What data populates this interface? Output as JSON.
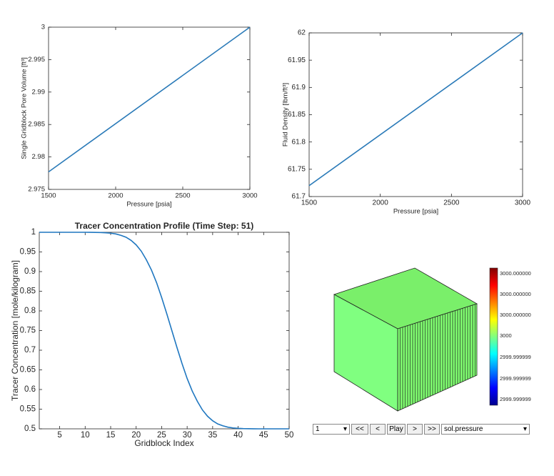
{
  "chart_data": [
    {
      "type": "line",
      "ylabel": "Single  Gridblock  Pore  Volume  [ft³]",
      "xlabel": "Pressure [psia]",
      "x": [
        1500,
        3000
      ],
      "values": [
        2.9777,
        3
      ],
      "color": "#2a7ab8",
      "xlim": [
        1500,
        3000
      ],
      "xticks": [
        1500,
        2000,
        2500,
        3000
      ],
      "ylim": [
        2.975,
        3
      ],
      "yticks": [
        2.975,
        2.98,
        2.985,
        2.99,
        2.995,
        3
      ]
    },
    {
      "type": "line",
      "ylabel": "Fluid  Density  [lbm/ft³]",
      "xlabel": "Pressure [psia]",
      "x": [
        1500,
        3000
      ],
      "values": [
        61.72,
        62
      ],
      "color": "#2a7ab8",
      "xlim": [
        1500,
        3000
      ],
      "xticks": [
        1500,
        2000,
        2500,
        3000
      ],
      "ylim": [
        61.7,
        62
      ],
      "yticks": [
        61.7,
        61.75,
        61.8,
        61.85,
        61.9,
        61.95,
        62
      ]
    },
    {
      "type": "line",
      "title": "Tracer Concentration Profile (Time Step: 51)",
      "ylabel": "Tracer Concentration [mole/kilogram]",
      "xlabel": "Gridblock Index",
      "x": [
        1,
        2,
        3,
        4,
        5,
        6,
        7,
        8,
        9,
        10,
        11,
        12,
        13,
        14,
        15,
        16,
        17,
        18,
        19,
        20,
        21,
        22,
        23,
        24,
        25,
        26,
        27,
        28,
        29,
        30,
        31,
        32,
        33,
        34,
        35,
        36,
        37,
        38,
        39,
        40,
        41,
        42,
        43,
        44,
        45,
        46,
        47,
        48,
        49,
        50
      ],
      "values": [
        1,
        1,
        1,
        1,
        1,
        1,
        1,
        1,
        1,
        1,
        0.9999,
        0.9997,
        0.9994,
        0.9988,
        0.9977,
        0.9958,
        0.9923,
        0.9876,
        0.9795,
        0.968,
        0.952,
        0.93,
        0.904,
        0.872,
        0.834,
        0.793,
        0.75,
        0.707,
        0.666,
        0.628,
        0.596,
        0.57,
        0.548,
        0.532,
        0.5205,
        0.5124,
        0.5077,
        0.5042,
        0.5023,
        0.5012,
        0.5006,
        0.5003,
        0.5001,
        0.5,
        0.5,
        0.5,
        0.5,
        0.5,
        0.5,
        0.5
      ],
      "color": "#1f77c0",
      "xlim": [
        1,
        50
      ],
      "xticks": [
        5,
        10,
        15,
        20,
        25,
        30,
        35,
        40,
        45,
        50
      ],
      "ylim": [
        0.5,
        1
      ],
      "yticks": [
        0.5,
        0.55,
        0.6,
        0.65,
        0.7,
        0.75,
        0.8,
        0.85,
        0.9,
        0.95,
        1
      ]
    }
  ],
  "viewer": {
    "colorbar_labels": [
      "3000.000000",
      "3000.000000",
      "3000.000000",
      "3000",
      "2999.999999",
      "2999.999999",
      "2999.999999"
    ],
    "toolbar": {
      "step": "1",
      "buttons": [
        "<<",
        "<",
        "Play",
        ">",
        ">>"
      ],
      "field": "sol.pressure"
    }
  }
}
